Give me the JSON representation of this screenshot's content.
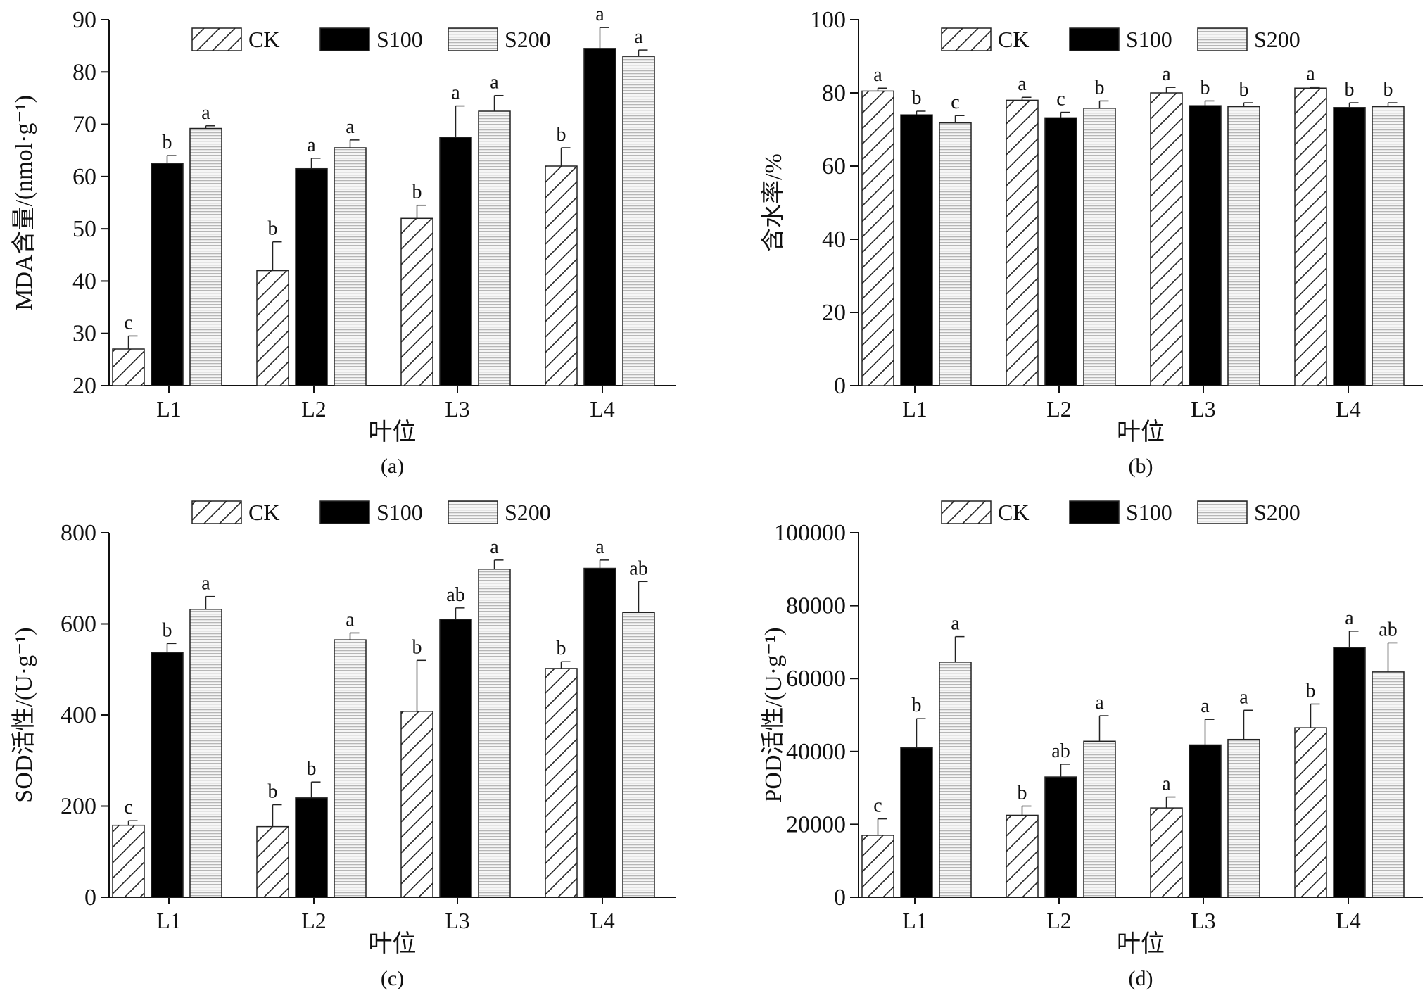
{
  "legend": [
    {
      "name": "CK",
      "fill": "hatch-diagonal"
    },
    {
      "name": "S100",
      "fill": "#000000"
    },
    {
      "name": "S200",
      "fill": "hatch-horizontal-light"
    }
  ],
  "chart_data": [
    {
      "type": "bar",
      "panel_label": "(a)",
      "xlabel": "叶位",
      "ylabel": "MDA含量/(nmol·g⁻¹)",
      "ylim": [
        20,
        90
      ],
      "yticks": [
        20,
        30,
        40,
        50,
        60,
        70,
        80,
        90
      ],
      "categories": [
        "L1",
        "L2",
        "L3",
        "L4"
      ],
      "legend_position": "top-center",
      "series": [
        {
          "name": "CK",
          "values": [
            27,
            42,
            52,
            62
          ],
          "errors": [
            2.5,
            5.5,
            2.5,
            3.5
          ],
          "sig": [
            "c",
            "b",
            "b",
            "b"
          ]
        },
        {
          "name": "S100",
          "values": [
            62.5,
            61.5,
            67.5,
            84.5
          ],
          "errors": [
            1.5,
            2,
            6,
            4
          ],
          "sig": [
            "b",
            "a",
            "a",
            "a"
          ]
        },
        {
          "name": "S200",
          "values": [
            69.2,
            65.5,
            72.5,
            83
          ],
          "errors": [
            0.5,
            1.5,
            3,
            1.2
          ],
          "sig": [
            "a",
            "a",
            "a",
            "a"
          ]
        }
      ]
    },
    {
      "type": "bar",
      "panel_label": "(b)",
      "xlabel": "叶位",
      "ylabel": "含水率/%",
      "ylim": [
        0,
        100
      ],
      "yticks": [
        0,
        20,
        40,
        60,
        80,
        100
      ],
      "categories": [
        "L1",
        "L2",
        "L3",
        "L4"
      ],
      "legend_position": "top-center",
      "series": [
        {
          "name": "CK",
          "values": [
            80.5,
            78,
            80,
            81.3
          ],
          "errors": [
            0.8,
            0.8,
            1.5,
            0.3
          ],
          "sig": [
            "a",
            "a",
            "a",
            "a"
          ]
        },
        {
          "name": "S100",
          "values": [
            74,
            73.2,
            76.5,
            76
          ],
          "errors": [
            1,
            1.5,
            1.3,
            1.3
          ],
          "sig": [
            "b",
            "c",
            "b",
            "b"
          ]
        },
        {
          "name": "S200",
          "values": [
            71.8,
            75.8,
            76.3,
            76.3
          ],
          "errors": [
            2,
            2,
            1,
            1
          ],
          "sig": [
            "c",
            "b",
            "b",
            "b"
          ]
        }
      ]
    },
    {
      "type": "bar",
      "panel_label": "(c)",
      "xlabel": "叶位",
      "ylabel": "SOD活性/(U·g⁻¹)",
      "ylim": [
        0,
        800
      ],
      "yticks": [
        0,
        200,
        400,
        600,
        800
      ],
      "categories": [
        "L1",
        "L2",
        "L3",
        "L4"
      ],
      "legend_position": "top-center",
      "series": [
        {
          "name": "CK",
          "values": [
            158,
            155,
            408,
            502
          ],
          "errors": [
            10,
            48,
            112,
            15
          ],
          "sig": [
            "c",
            "b",
            "b",
            "b"
          ]
        },
        {
          "name": "S100",
          "values": [
            537,
            218,
            610,
            722
          ],
          "errors": [
            20,
            35,
            25,
            18
          ],
          "sig": [
            "b",
            "b",
            "ab",
            "a"
          ]
        },
        {
          "name": "S200",
          "values": [
            632,
            565,
            720,
            625
          ],
          "errors": [
            28,
            15,
            20,
            68
          ],
          "sig": [
            "a",
            "a",
            "a",
            "ab"
          ]
        }
      ]
    },
    {
      "type": "bar",
      "panel_label": "(d)",
      "xlabel": "叶位",
      "ylabel": "POD活性/(U·g⁻¹)",
      "ylim": [
        0,
        100000
      ],
      "yticks": [
        0,
        20000,
        40000,
        60000,
        80000,
        100000
      ],
      "categories": [
        "L1",
        "L2",
        "L3",
        "L4"
      ],
      "legend_position": "top-center",
      "series": [
        {
          "name": "CK",
          "values": [
            17000,
            22500,
            24500,
            46500
          ],
          "errors": [
            4500,
            2500,
            3000,
            6500
          ],
          "sig": [
            "c",
            "b",
            "a",
            "b"
          ]
        },
        {
          "name": "S100",
          "values": [
            41000,
            33000,
            41800,
            68500
          ],
          "errors": [
            8000,
            3500,
            7000,
            4500
          ],
          "sig": [
            "b",
            "ab",
            "a",
            "a"
          ]
        },
        {
          "name": "S200",
          "values": [
            64500,
            42800,
            43300,
            61800
          ],
          "errors": [
            7000,
            7000,
            8000,
            8000
          ],
          "sig": [
            "a",
            "a",
            "a",
            "ab"
          ]
        }
      ]
    }
  ]
}
